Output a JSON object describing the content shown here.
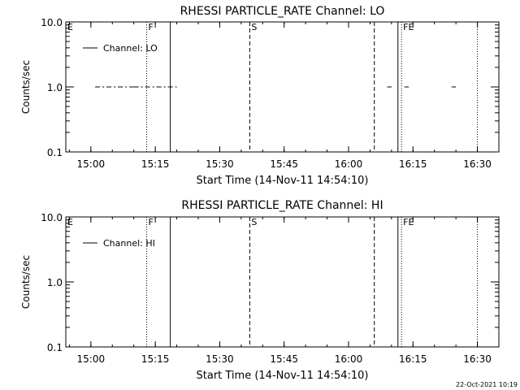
{
  "chart_data": [
    {
      "type": "line",
      "title": "RHESSI PARTICLE_RATE Channel: LO",
      "xlabel": "Start Time (14-Nov-11 14:54:10)",
      "ylabel": "Counts/sec",
      "xlim": [
        "14:54:10",
        "16:35:00"
      ],
      "ylim": [
        0.1,
        10.0
      ],
      "yscale": "log",
      "x_ticks": [
        "15:00",
        "15:15",
        "15:30",
        "15:45",
        "16:00",
        "16:15",
        "16:30"
      ],
      "y_ticks": [
        "0.1",
        "1.0",
        "10.0"
      ],
      "legend": {
        "position": "top-left",
        "entries": [
          "Channel: LO"
        ]
      },
      "series": [
        {
          "name": "Channel: LO",
          "style": "dash-dot fragments",
          "segments": [
            [
              [
                "15:01",
                1.0
              ],
              [
                "15:10",
                1.0
              ]
            ],
            [
              [
                "15:10",
                1.0
              ],
              [
                "15:20",
                1.0
              ]
            ],
            [
              [
                "16:09",
                1.0
              ],
              [
                "16:10",
                1.0
              ]
            ],
            [
              [
                "16:13",
                1.0
              ],
              [
                "16:14",
                1.0
              ]
            ],
            [
              [
                "16:24",
                1.0
              ],
              [
                "16:25",
                1.0
              ]
            ]
          ]
        }
      ],
      "vertical_markers": [
        {
          "label": "E",
          "time": "14:54:10",
          "style": "none"
        },
        {
          "label": "F",
          "time": "15:13:00",
          "style": "dotted"
        },
        {
          "label": "",
          "time": "15:18:30",
          "style": "solid"
        },
        {
          "label": "S",
          "time": "15:37:00",
          "style": "dashed"
        },
        {
          "label": "",
          "time": "16:06:00",
          "style": "dashed"
        },
        {
          "label": "",
          "time": "16:11:30",
          "style": "solid"
        },
        {
          "label": "FE",
          "time": "16:12:20",
          "style": "dotted"
        },
        {
          "label": "",
          "time": "16:30:00",
          "style": "dotted"
        }
      ]
    },
    {
      "type": "line",
      "title": "RHESSI PARTICLE_RATE Channel: HI",
      "xlabel": "Start Time (14-Nov-11 14:54:10)",
      "ylabel": "Counts/sec",
      "xlim": [
        "14:54:10",
        "16:35:00"
      ],
      "ylim": [
        0.1,
        10.0
      ],
      "yscale": "log",
      "x_ticks": [
        "15:00",
        "15:15",
        "15:30",
        "15:45",
        "16:00",
        "16:15",
        "16:30"
      ],
      "y_ticks": [
        "0.1",
        "1.0",
        "10.0"
      ],
      "legend": {
        "position": "top-left",
        "entries": [
          "Channel: HI"
        ]
      },
      "series": [
        {
          "name": "Channel: HI",
          "style": "solid",
          "segments": []
        }
      ],
      "vertical_markers": [
        {
          "label": "E",
          "time": "14:54:10",
          "style": "none"
        },
        {
          "label": "F",
          "time": "15:13:00",
          "style": "dotted"
        },
        {
          "label": "",
          "time": "15:18:30",
          "style": "solid"
        },
        {
          "label": "S",
          "time": "15:37:00",
          "style": "dashed"
        },
        {
          "label": "",
          "time": "16:06:00",
          "style": "dashed"
        },
        {
          "label": "",
          "time": "16:11:30",
          "style": "solid"
        },
        {
          "label": "FE",
          "time": "16:12:20",
          "style": "dotted"
        },
        {
          "label": "",
          "time": "16:30:00",
          "style": "dotted"
        }
      ]
    }
  ],
  "footer": {
    "timestamp": "22-Oct-2021 10:19"
  }
}
